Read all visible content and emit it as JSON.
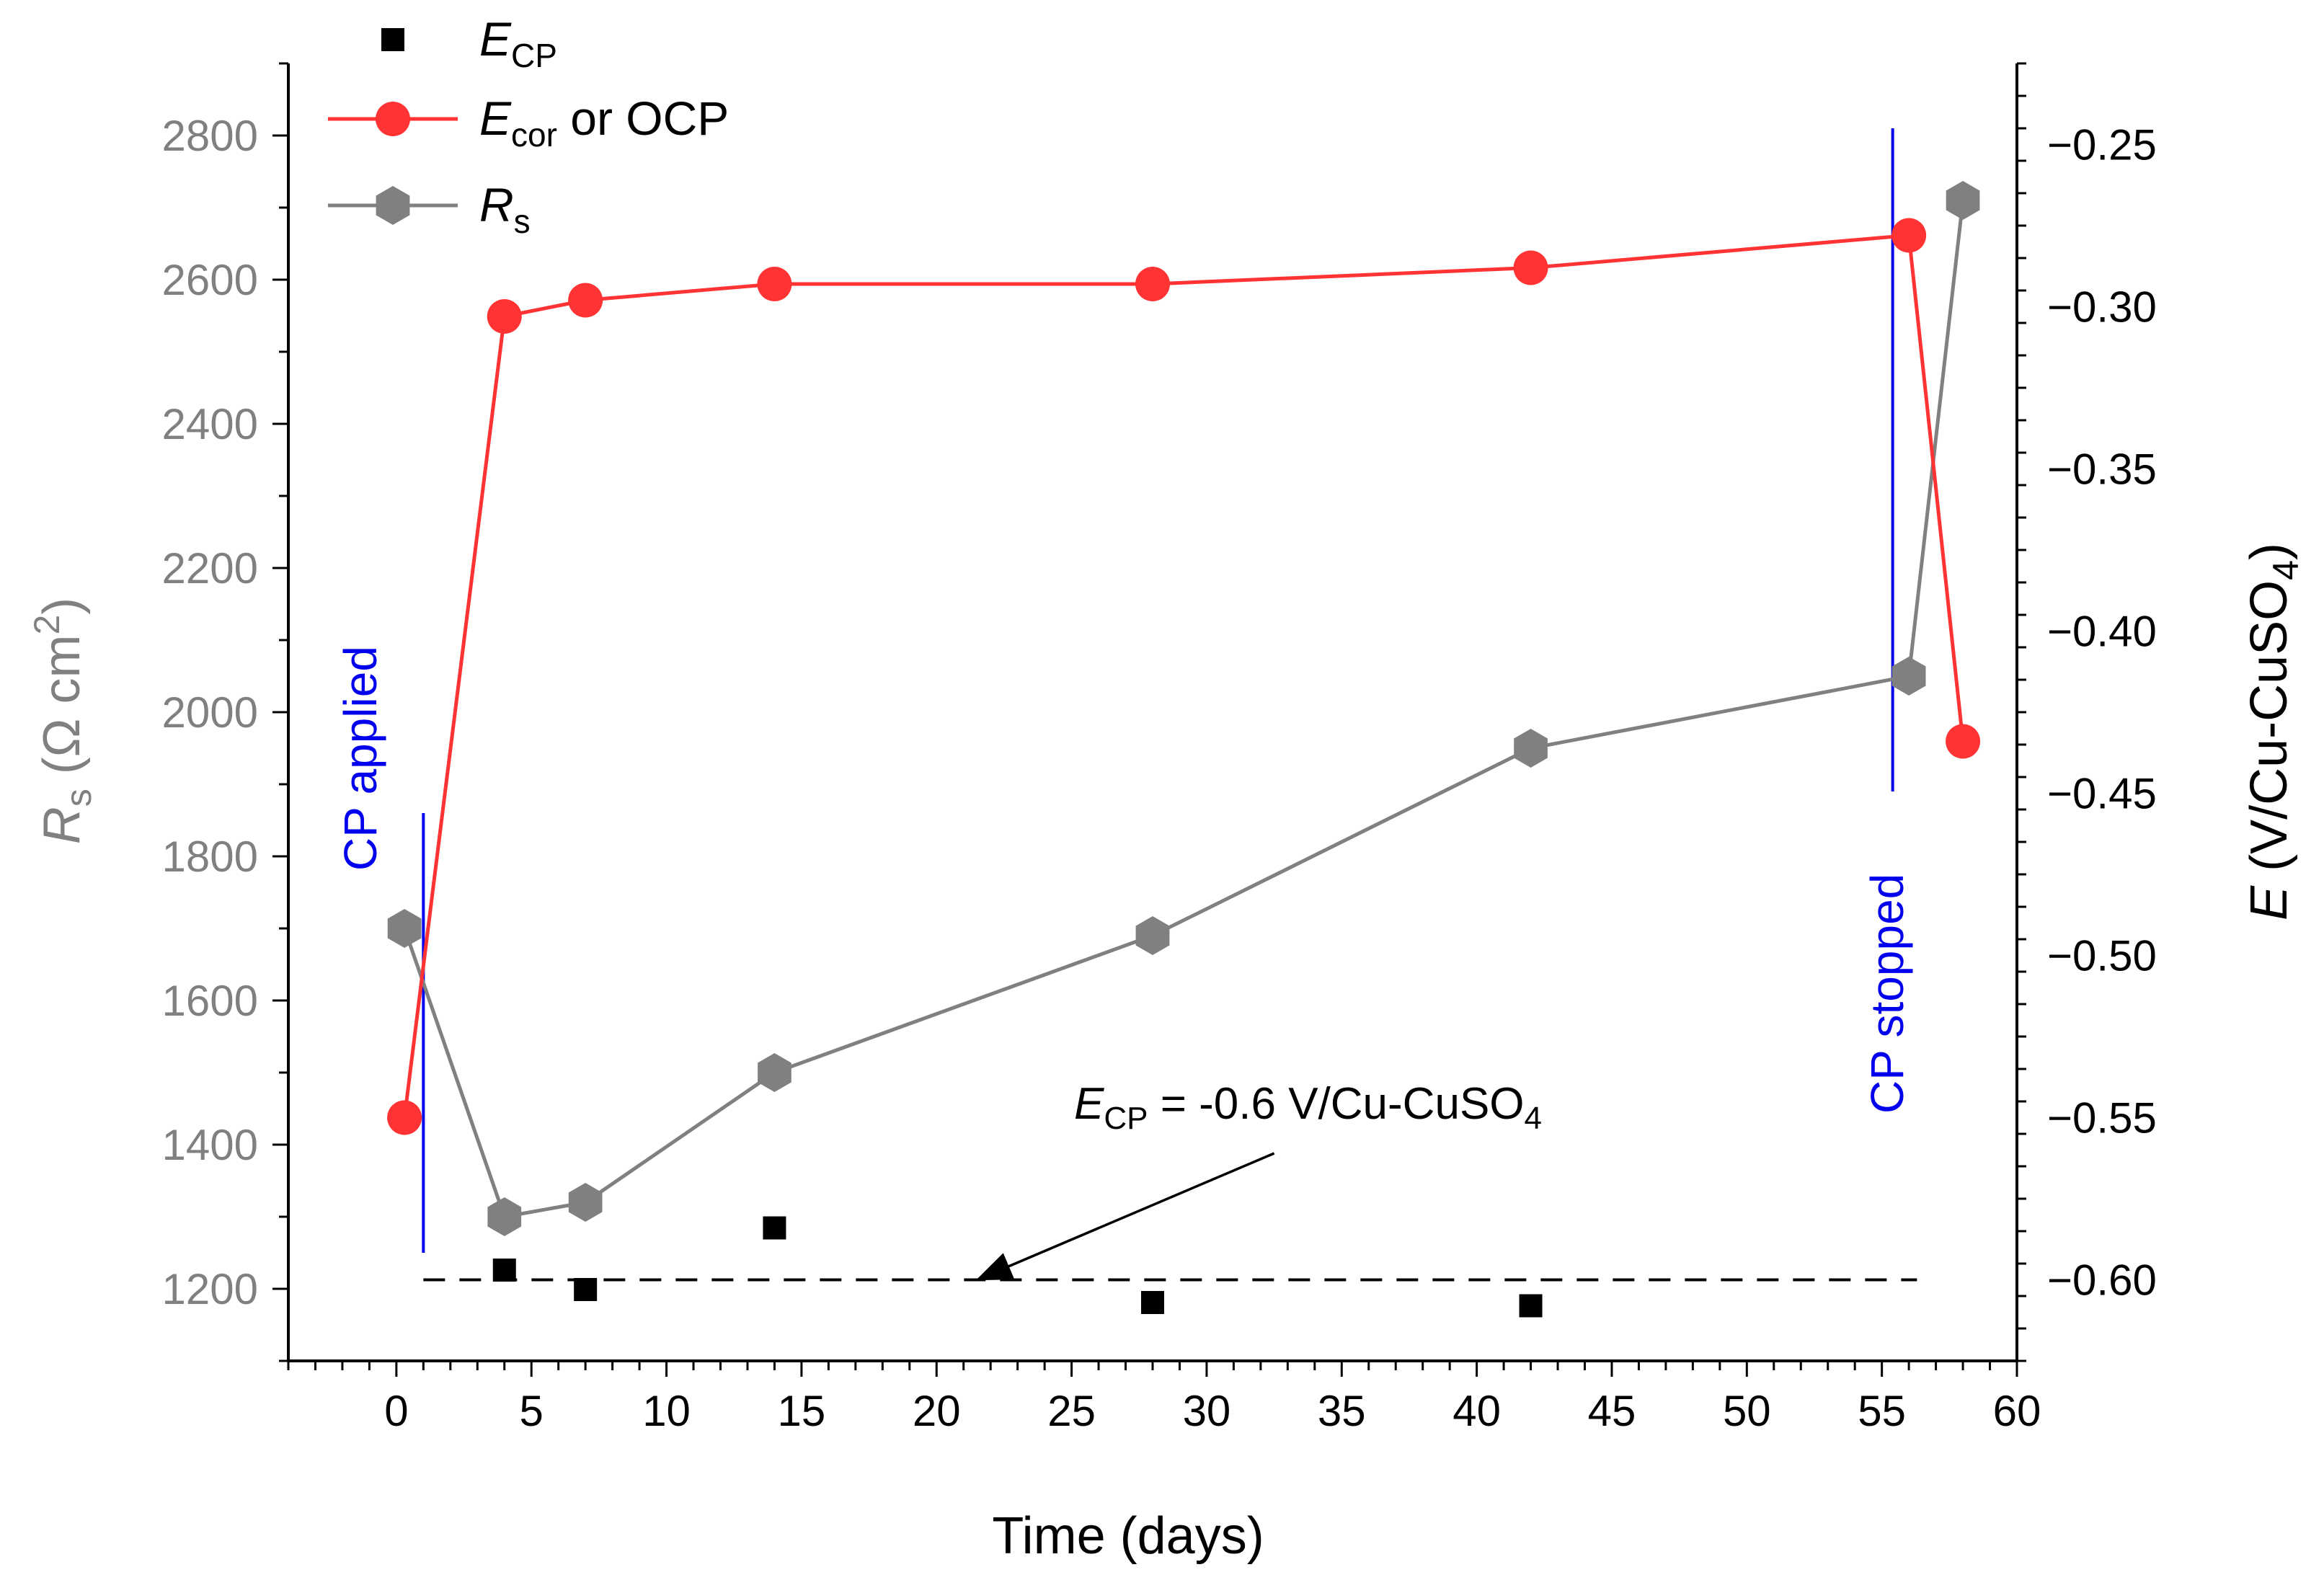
{
  "chart_data": {
    "type": "line",
    "x_axis": {
      "label": "Time (days)",
      "range": [
        -4,
        60
      ],
      "ticks": [
        0,
        5,
        10,
        15,
        20,
        25,
        30,
        35,
        40,
        45,
        50,
        55,
        60
      ],
      "tick_labels": [
        "0",
        "5",
        "10",
        "15",
        "20",
        "25",
        "30",
        "35",
        "40",
        "45",
        "50",
        "55",
        "60"
      ]
    },
    "y_left_axis": {
      "label_main": "R",
      "label_sub": "s",
      "label_unit": " (Ω cm",
      "label_sup": "2",
      "label_close": ")",
      "range": [
        1100,
        2900
      ],
      "ticks": [
        1200,
        1400,
        1600,
        1800,
        2000,
        2200,
        2400,
        2600,
        2800
      ],
      "tick_labels": [
        "1200",
        "1400",
        "1600",
        "1800",
        "2000",
        "2200",
        "2400",
        "2600",
        "2800"
      ],
      "color": "#808080"
    },
    "y_right_axis": {
      "label_main": "E",
      "label_unit": " (V/Cu-CuSO",
      "label_sub": "4",
      "label_close": ")",
      "range": [
        -0.625,
        -0.225
      ],
      "ticks": [
        -0.6,
        -0.55,
        -0.5,
        -0.45,
        -0.4,
        -0.35,
        -0.3,
        -0.25
      ],
      "tick_labels": [
        "−0.60",
        "−0.55",
        "−0.50",
        "−0.45",
        "−0.40",
        "−0.35",
        "−0.30",
        "−0.25"
      ]
    },
    "series": [
      {
        "name_main": "E",
        "name_sub": "CP",
        "name_rest": "",
        "axis": "right",
        "style": "square",
        "color": "#000000",
        "x": [
          4,
          7,
          14,
          28,
          42
        ],
        "y": [
          -0.597,
          -0.603,
          -0.584,
          -0.607,
          -0.608
        ]
      },
      {
        "name_main": "E",
        "name_sub": "cor",
        "name_rest": " or OCP",
        "axis": "right",
        "style": "circle-line",
        "color": "#ff3333",
        "x": [
          0.3,
          4,
          7,
          14,
          28,
          42,
          56,
          58
        ],
        "y": [
          -0.55,
          -0.303,
          -0.298,
          -0.293,
          -0.293,
          -0.288,
          -0.278,
          -0.434
        ]
      },
      {
        "name_main": "R",
        "name_sub": "s",
        "name_rest": "",
        "axis": "left",
        "style": "hexagon-line",
        "color": "#808080",
        "x": [
          0.3,
          4,
          7,
          14,
          28,
          42,
          56,
          58
        ],
        "y": [
          1700,
          1300,
          1320,
          1500,
          1690,
          1950,
          2050,
          2710
        ]
      }
    ],
    "annotations": {
      "cp_applied": {
        "text": "CP applied",
        "x": 1,
        "y_left_range": [
          1250,
          1860
        ],
        "color": "#0000ee"
      },
      "cp_stopped": {
        "text": "CP stopped",
        "x": 55.4,
        "y_left_range": [
          1890,
          2810
        ],
        "color": "#0000ee"
      },
      "ecp_line": {
        "text_main": "E",
        "text_sub": "CP",
        "text_rest": " = -0.6 V/Cu-CuSO",
        "text_sub2": "4",
        "y_right": -0.6,
        "x_range": [
          1,
          56.3
        ],
        "arrow_from": [
          32.5,
          -0.561
        ],
        "arrow_to": [
          21.5,
          -0.6
        ]
      }
    },
    "legend_position": "top-left"
  }
}
